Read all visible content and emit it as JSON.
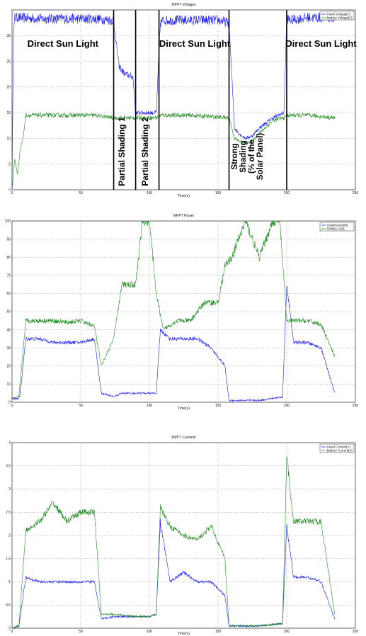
{
  "chart_data": [
    {
      "type": "line",
      "title": "MPPT Voltages",
      "xlabel": "Time(s)",
      "ylabel": "",
      "xlim": [
        0,
        250
      ],
      "ylim": [
        0,
        35
      ],
      "xticks": [
        0,
        50,
        100,
        150,
        200,
        250
      ],
      "yticks": [
        0,
        5,
        10,
        15,
        20,
        25,
        30
      ],
      "grid": true,
      "legend": "top-right",
      "series": [
        {
          "name": "Panel Voltage[V]",
          "color": "#1f1fff",
          "x": [
            0,
            1,
            2,
            5,
            20,
            40,
            60,
            74,
            76,
            78,
            82,
            88,
            90,
            92,
            100,
            105,
            108,
            110,
            130,
            150,
            158,
            162,
            165,
            170,
            175,
            180,
            190,
            198,
            200,
            202,
            215,
            235
          ],
          "y": [
            0,
            30,
            33.5,
            33.5,
            33.3,
            33.3,
            33.3,
            33,
            28,
            24,
            22.5,
            22,
            15,
            15,
            15,
            15,
            32.5,
            33,
            33,
            33,
            32.5,
            12,
            11,
            10,
            10.5,
            12,
            14,
            15,
            33.5,
            33,
            33.5,
            33.5
          ]
        },
        {
          "name": "Battery Voltage[V]",
          "color": "#228b22",
          "x": [
            0,
            2,
            4,
            6,
            8,
            10,
            30,
            60,
            74,
            90,
            105,
            108,
            130,
            158,
            162,
            165,
            170,
            175,
            180,
            190,
            198,
            200,
            215,
            235
          ],
          "y": [
            0,
            6,
            3,
            8,
            10,
            14.5,
            14.5,
            14.5,
            14,
            14,
            14,
            14.5,
            14.5,
            14,
            10,
            9.5,
            9,
            9.5,
            11,
            13.5,
            14,
            14.5,
            14.5,
            14
          ]
        }
      ],
      "annotations": [
        "Direct Sun Light",
        "Partial Shading 1",
        "Partial Shading 2",
        "Direct Sun Light",
        "Strong Shading (⅔ of the Solar Panel)",
        "Direct Sun Light"
      ],
      "markers_x": [
        74,
        90,
        107,
        158,
        200
      ]
    },
    {
      "type": "line",
      "title": "MPPT Power",
      "xlabel": "Time(s)",
      "ylabel": "",
      "xlim": [
        0,
        250
      ],
      "ylim": [
        0,
        100
      ],
      "xticks": [
        0,
        50,
        100,
        150,
        200,
        250
      ],
      "yticks": [
        0,
        10,
        20,
        30,
        40,
        50,
        60,
        70,
        80,
        90,
        100
      ],
      "grid": true,
      "legend": "top-right",
      "series": [
        {
          "name": "SolarPower[W]",
          "color": "#1f1fff",
          "x": [
            0,
            5,
            6,
            10,
            20,
            30,
            40,
            50,
            60,
            65,
            74,
            80,
            100,
            105,
            108,
            115,
            125,
            135,
            145,
            155,
            158,
            180,
            197,
            200,
            205,
            215,
            225,
            235
          ],
          "y": [
            2,
            2,
            5,
            35,
            35,
            33,
            33,
            33,
            35,
            5,
            3,
            5,
            5,
            5,
            40,
            35,
            35,
            35,
            30,
            20,
            1,
            1,
            3,
            65,
            33,
            33,
            30,
            5
          ]
        },
        {
          "name": "PWM[1-100]",
          "color": "#228b22",
          "x": [
            0,
            5,
            10,
            20,
            30,
            40,
            50,
            60,
            65,
            74,
            80,
            90,
            95,
            100,
            105,
            110,
            120,
            130,
            140,
            150,
            155,
            160,
            170,
            180,
            190,
            195,
            200,
            205,
            215,
            225,
            235
          ],
          "y": [
            2,
            3,
            45,
            45,
            45,
            44,
            45,
            42,
            20,
            35,
            65,
            65,
            100,
            100,
            60,
            40,
            45,
            45,
            55,
            55,
            75,
            80,
            100,
            80,
            100,
            100,
            45,
            45,
            45,
            43,
            25
          ]
        }
      ]
    },
    {
      "type": "line",
      "title": "MPPT Currents",
      "xlabel": "Time(s)",
      "ylabel": "",
      "xlim": [
        0,
        250
      ],
      "ylim": [
        0,
        4
      ],
      "xticks": [
        0,
        50,
        100,
        150,
        200,
        250
      ],
      "yticks": [
        0,
        0.5,
        1,
        1.5,
        2,
        2.5,
        3,
        3.5,
        4
      ],
      "grid": true,
      "legend": "top-right",
      "series": [
        {
          "name": "Panel Current[A]",
          "color": "#1f1fff",
          "x": [
            0,
            5,
            10,
            20,
            30,
            40,
            50,
            60,
            65,
            74,
            90,
            100,
            105,
            108,
            115,
            125,
            135,
            145,
            155,
            158,
            180,
            197,
            200,
            205,
            215,
            225,
            235
          ],
          "y": [
            0,
            0.05,
            1.1,
            1.0,
            1.0,
            1.0,
            1.0,
            1.0,
            0.2,
            0.25,
            0.25,
            0.25,
            0.3,
            2.3,
            1.0,
            1.2,
            1.0,
            1.0,
            0.7,
            0.05,
            0.05,
            0.1,
            2.2,
            1.1,
            1.1,
            1.0,
            0.2
          ]
        },
        {
          "name": "Battery Current[A]",
          "color": "#228b22",
          "x": [
            0,
            5,
            10,
            20,
            30,
            40,
            50,
            60,
            65,
            74,
            90,
            100,
            105,
            108,
            115,
            125,
            135,
            145,
            155,
            158,
            180,
            197,
            200,
            205,
            215,
            225,
            235
          ],
          "y": [
            0,
            0.05,
            2.1,
            2.3,
            2.7,
            2.3,
            2.5,
            2.5,
            0.3,
            0.3,
            0.25,
            0.25,
            0.3,
            2.6,
            2.2,
            2.0,
            1.9,
            2.2,
            1.5,
            0.05,
            0.05,
            0.1,
            3.7,
            2.3,
            2.3,
            2.3,
            0.3
          ]
        }
      ]
    }
  ]
}
